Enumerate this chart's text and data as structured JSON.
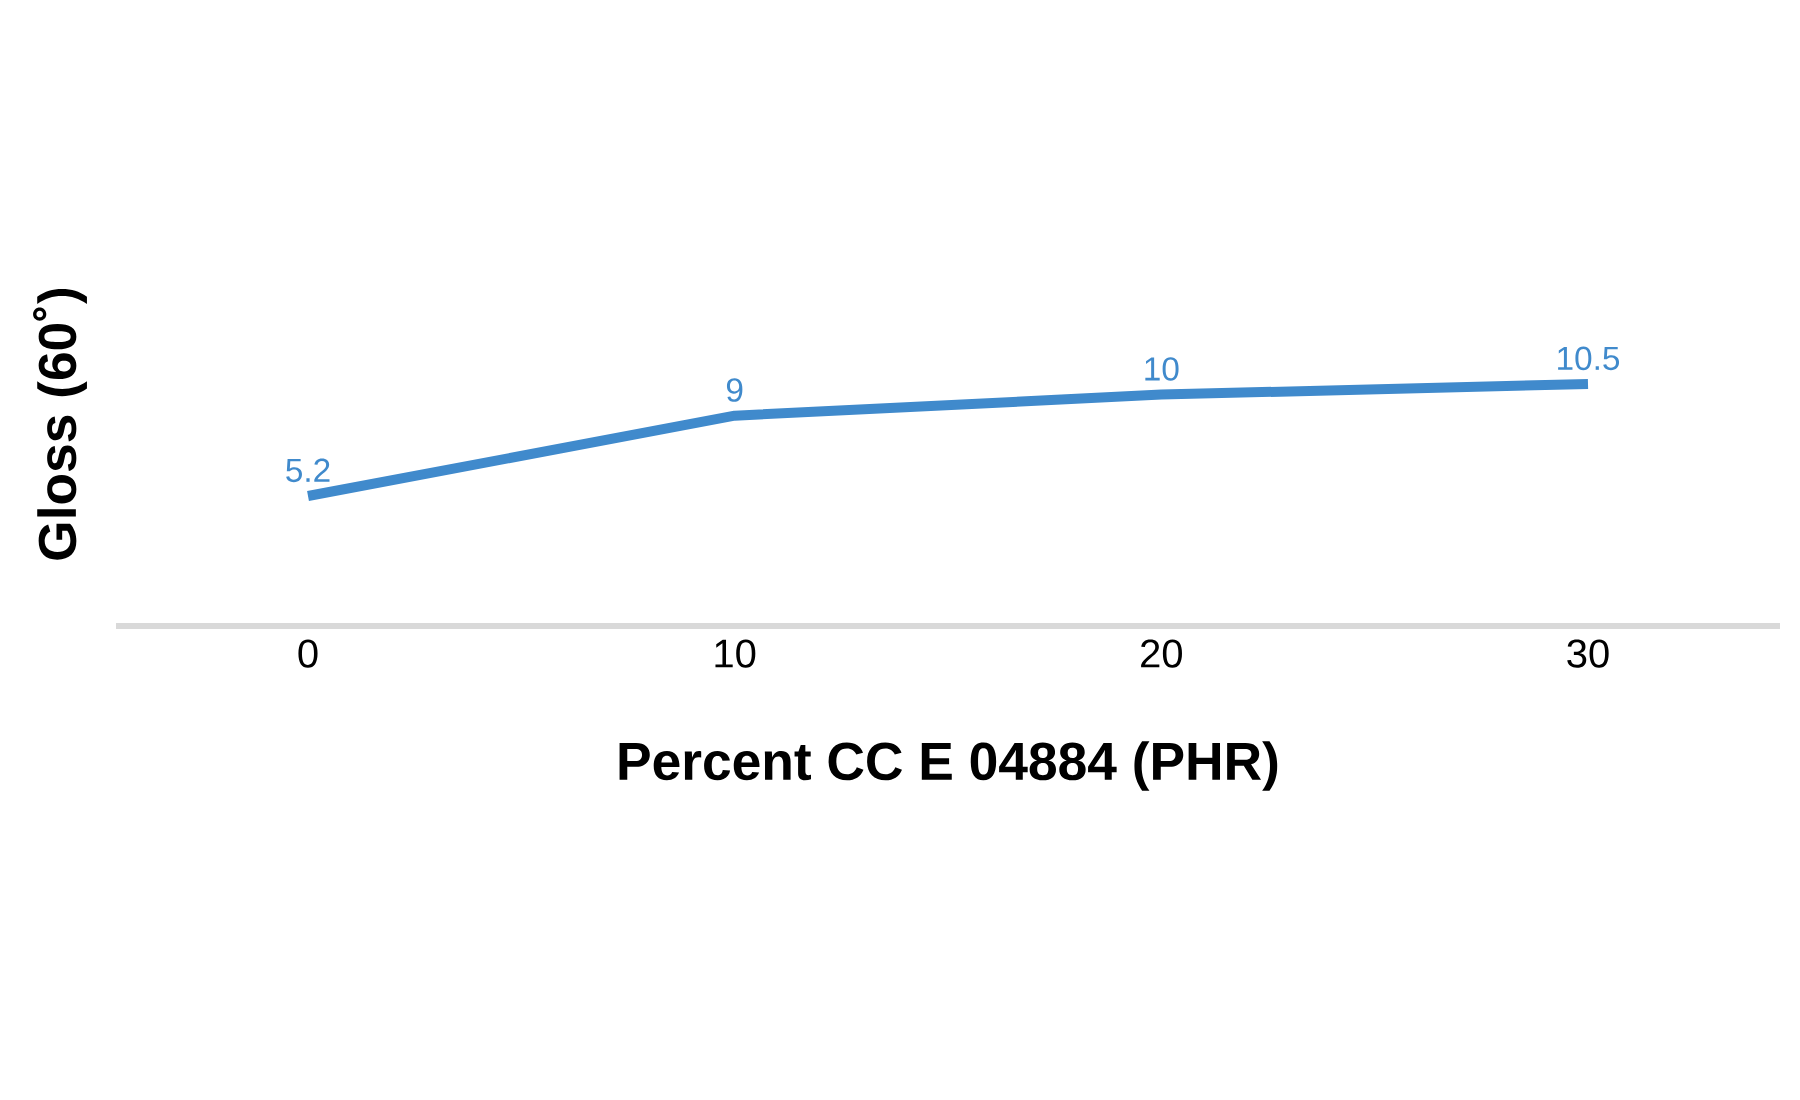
{
  "chart_data": {
    "type": "line",
    "xlabel": "Percent CC E 04884 (PHR)",
    "ylabel": "Gloss (60˚)",
    "categories": [
      "0",
      "10",
      "20",
      "30"
    ],
    "values": [
      5.2,
      9,
      10,
      10.5
    ],
    "color": "#408acc",
    "data_labels": true
  }
}
